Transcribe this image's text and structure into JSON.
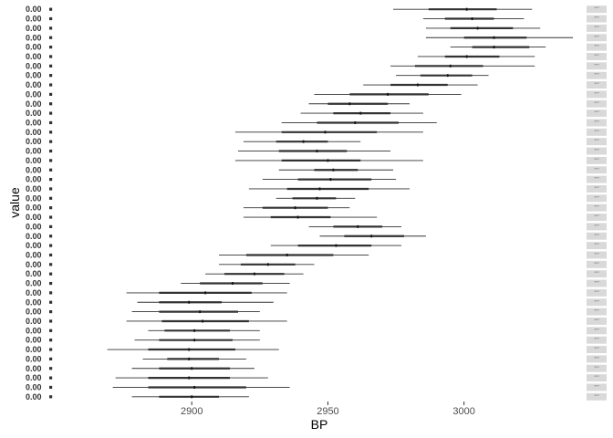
{
  "chart_data": {
    "type": "range_interval",
    "title": "",
    "xlabel": "BP",
    "ylabel": "value",
    "xlim": [
      2849,
      3044
    ],
    "x_ticks": [
      2900,
      2950,
      3000
    ],
    "x_tick_labels": [
      "2900",
      "2950",
      "3000"
    ],
    "grid": false,
    "legend": "none",
    "y_tick_label": "0.00",
    "strip_label": "’’’",
    "colors": {
      "interval": "#333333",
      "strip_bg": "#d9d9d9",
      "tick_text": "#4d4d4d"
    },
    "rows": [
      {
        "outer": [
          2974,
          3025
        ],
        "inner": [
          2987,
          3012
        ],
        "median": 3001
      },
      {
        "outer": [
          2985,
          3022
        ],
        "inner": [
          2993,
          3011
        ],
        "median": 3003
      },
      {
        "outer": [
          2986,
          3028
        ],
        "inner": [
          2995,
          3018
        ],
        "median": 3005
      },
      {
        "outer": [
          2986,
          3040
        ],
        "inner": [
          3000,
          3023
        ],
        "median": 3011
      },
      {
        "outer": [
          2995,
          3030
        ],
        "inner": [
          3003,
          3024
        ],
        "median": 3011
      },
      {
        "outer": [
          2983,
          3026
        ],
        "inner": [
          2993,
          3013
        ],
        "median": 3001
      },
      {
        "outer": [
          2973,
          3026
        ],
        "inner": [
          2982,
          3007
        ],
        "median": 2995
      },
      {
        "outer": [
          2975,
          3009
        ],
        "inner": [
          2984,
          3003
        ],
        "median": 2994
      },
      {
        "outer": [
          2963,
          3005
        ],
        "inner": [
          2973,
          2994
        ],
        "median": 2983
      },
      {
        "outer": [
          2945,
          2999
        ],
        "inner": [
          2958,
          2987
        ],
        "median": 2972
      },
      {
        "outer": [
          2943,
          2980
        ],
        "inner": [
          2950,
          2972
        ],
        "median": 2958
      },
      {
        "outer": [
          2940,
          2985
        ],
        "inner": [
          2952,
          2973
        ],
        "median": 2962
      },
      {
        "outer": [
          2933,
          2990
        ],
        "inner": [
          2946,
          2976
        ],
        "median": 2960
      },
      {
        "outer": [
          2916,
          2985
        ],
        "inner": [
          2933,
          2968
        ],
        "median": 2949
      },
      {
        "outer": [
          2919,
          2962
        ],
        "inner": [
          2931,
          2950
        ],
        "median": 2941
      },
      {
        "outer": [
          2917,
          2973
        ],
        "inner": [
          2932,
          2957
        ],
        "median": 2946
      },
      {
        "outer": [
          2916,
          2985
        ],
        "inner": [
          2933,
          2962
        ],
        "median": 2950
      },
      {
        "outer": [
          2932,
          2974
        ],
        "inner": [
          2945,
          2961
        ],
        "median": 2952
      },
      {
        "outer": [
          2926,
          2975
        ],
        "inner": [
          2939,
          2966
        ],
        "median": 2951
      },
      {
        "outer": [
          2921,
          2980
        ],
        "inner": [
          2935,
          2965
        ],
        "median": 2947
      },
      {
        "outer": [
          2931,
          2960
        ],
        "inner": [
          2937,
          2953
        ],
        "median": 2946
      },
      {
        "outer": [
          2919,
          2958
        ],
        "inner": [
          2926,
          2950
        ],
        "median": 2938
      },
      {
        "outer": [
          2919,
          2968
        ],
        "inner": [
          2929,
          2951
        ],
        "median": 2939
      },
      {
        "outer": [
          2943,
          2977
        ],
        "inner": [
          2952,
          2970
        ],
        "median": 2961
      },
      {
        "outer": [
          2947,
          2986
        ],
        "inner": [
          2956,
          2978
        ],
        "median": 2966
      },
      {
        "outer": [
          2929,
          2977
        ],
        "inner": [
          2939,
          2966
        ],
        "median": 2953
      },
      {
        "outer": [
          2910,
          2965
        ],
        "inner": [
          2920,
          2952
        ],
        "median": 2935
      },
      {
        "outer": [
          2910,
          2945
        ],
        "inner": [
          2918,
          2938
        ],
        "median": 2928
      },
      {
        "outer": [
          2905,
          2941
        ],
        "inner": [
          2912,
          2934
        ],
        "median": 2923
      },
      {
        "outer": [
          2896,
          2936
        ],
        "inner": [
          2903,
          2926
        ],
        "median": 2915
      },
      {
        "outer": [
          2876,
          2935
        ],
        "inner": [
          2888,
          2922
        ],
        "median": 2905
      },
      {
        "outer": [
          2880,
          2930
        ],
        "inner": [
          2888,
          2911
        ],
        "median": 2899
      },
      {
        "outer": [
          2878,
          2925
        ],
        "inner": [
          2888,
          2917
        ],
        "median": 2903
      },
      {
        "outer": [
          2876,
          2935
        ],
        "inner": [
          2889,
          2921
        ],
        "median": 2904
      },
      {
        "outer": [
          2884,
          2925
        ],
        "inner": [
          2890,
          2914
        ],
        "median": 2901
      },
      {
        "outer": [
          2879,
          2925
        ],
        "inner": [
          2888,
          2915
        ],
        "median": 2901
      },
      {
        "outer": [
          2869,
          2932
        ],
        "inner": [
          2884,
          2916
        ],
        "median": 2899
      },
      {
        "outer": [
          2882,
          2920
        ],
        "inner": [
          2891,
          2910
        ],
        "median": 2899
      },
      {
        "outer": [
          2878,
          2923
        ],
        "inner": [
          2888,
          2914
        ],
        "median": 2900
      },
      {
        "outer": [
          2872,
          2928
        ],
        "inner": [
          2884,
          2914
        ],
        "median": 2899
      },
      {
        "outer": [
          2871,
          2936
        ],
        "inner": [
          2884,
          2920
        ],
        "median": 2901
      },
      {
        "outer": [
          2878,
          2921
        ],
        "inner": [
          2888,
          2910
        ],
        "median": 2900
      }
    ]
  }
}
